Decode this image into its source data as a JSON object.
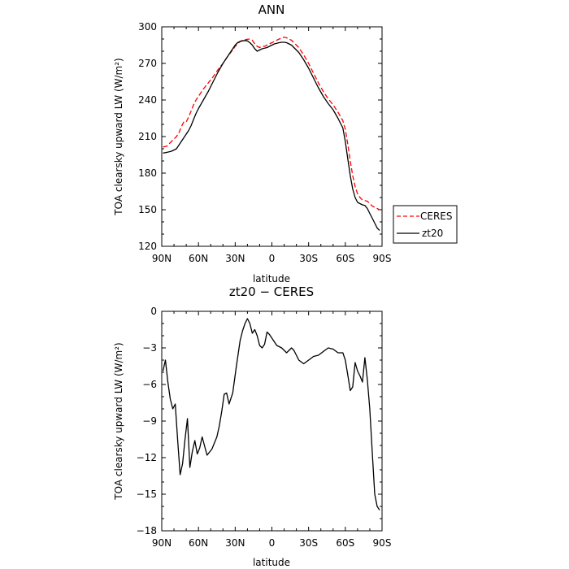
{
  "chart_data": [
    {
      "type": "line",
      "title": "ANN",
      "xlabel": "latitude",
      "ylabel": "TOA clearsky upward LW (W/m²)",
      "xlim": [
        90,
        -90
      ],
      "ylim": [
        120,
        300
      ],
      "xticks": [
        90,
        60,
        30,
        0,
        -30,
        -60,
        -90
      ],
      "xtick_labels": [
        "90N",
        "60N",
        "30N",
        "0",
        "30S",
        "60S",
        "90S"
      ],
      "yticks": [
        120,
        150,
        180,
        210,
        240,
        270,
        300
      ],
      "ytick_labels": [
        "120",
        "150",
        "180",
        "210",
        "240",
        "270",
        "300"
      ],
      "legend_position": "outside-right",
      "series": [
        {
          "name": "CERES",
          "color": "#ff0000",
          "dash": "dashed",
          "x": [
            89,
            86,
            84,
            82,
            80,
            78,
            76,
            74,
            72,
            70,
            68,
            66,
            64,
            62,
            60,
            56,
            52,
            48,
            44,
            40,
            36,
            32,
            30,
            28,
            26,
            24,
            22,
            20,
            18,
            16,
            14,
            12,
            10,
            8,
            6,
            4,
            2,
            0,
            -2,
            -4,
            -6,
            -8,
            -10,
            -12,
            -14,
            -16,
            -18,
            -20,
            -22,
            -26,
            -30,
            -34,
            -38,
            -42,
            -46,
            -50,
            -54,
            -58,
            -60,
            -62,
            -64,
            -66,
            -68,
            -70,
            -72,
            -74,
            -76,
            -78,
            -80,
            -82,
            -84,
            -86,
            -88
          ],
          "y": [
            201.5,
            202,
            204,
            206,
            208,
            210,
            213,
            218,
            222,
            222,
            226,
            231,
            236,
            240,
            243,
            249,
            254,
            259,
            265,
            270,
            276,
            281,
            284,
            286,
            288,
            289,
            289.5,
            289.8,
            290,
            289,
            286,
            284,
            283,
            284,
            284,
            285,
            286,
            287,
            288,
            289,
            290,
            291,
            291.5,
            291,
            290,
            289,
            287,
            285,
            283,
            277,
            270,
            262,
            254,
            247,
            241,
            236,
            230,
            223,
            216,
            204,
            190,
            178,
            169,
            163,
            160,
            158,
            157.5,
            157,
            155,
            153,
            152,
            151,
            150
          ]
        },
        {
          "name": "zt20",
          "color": "#000000",
          "dash": "solid",
          "x": [
            89,
            86,
            84,
            82,
            80,
            78,
            76,
            74,
            72,
            70,
            68,
            66,
            64,
            62,
            60,
            56,
            52,
            48,
            44,
            40,
            36,
            32,
            30,
            28,
            26,
            24,
            22,
            20,
            18,
            16,
            14,
            12,
            10,
            8,
            6,
            4,
            2,
            0,
            -2,
            -4,
            -6,
            -8,
            -10,
            -12,
            -14,
            -16,
            -18,
            -20,
            -22,
            -26,
            -30,
            -34,
            -38,
            -42,
            -46,
            -50,
            -54,
            -58,
            -60,
            -62,
            -64,
            -66,
            -68,
            -70,
            -72,
            -74,
            -76,
            -78,
            -80,
            -82,
            -84,
            -86,
            -88
          ],
          "y": [
            196.5,
            197,
            197.5,
            198,
            199,
            200,
            203,
            206,
            209,
            212,
            215,
            219,
            224,
            229,
            233,
            240,
            247,
            255,
            263,
            270,
            276,
            282,
            285,
            287,
            288,
            288.5,
            288.8,
            288.5,
            287,
            285,
            282,
            280,
            281,
            282,
            282.5,
            283,
            284,
            285,
            286,
            286.5,
            287,
            287.3,
            287.3,
            287,
            286,
            285,
            283,
            281,
            279,
            273,
            266,
            258,
            250,
            243,
            237,
            232,
            225,
            217,
            206,
            192,
            178,
            167,
            160,
            156,
            155,
            154,
            153.5,
            151,
            147,
            143,
            139,
            135,
            133
          ]
        }
      ]
    },
    {
      "type": "line",
      "title": "zt20 − CERES",
      "xlabel": "latitude",
      "ylabel": "TOA clearsky upward LW (W/m²)",
      "xlim": [
        90,
        -90
      ],
      "ylim": [
        -18,
        0
      ],
      "xticks": [
        90,
        60,
        30,
        0,
        -30,
        -60,
        -90
      ],
      "xtick_labels": [
        "90N",
        "60N",
        "30N",
        "0",
        "30S",
        "60S",
        "90S"
      ],
      "yticks": [
        -18,
        -15,
        -12,
        -9,
        -6,
        -3,
        0
      ],
      "ytick_labels": [
        "−18",
        "−15",
        "−12",
        "−9",
        "−6",
        "−3",
        "0"
      ],
      "series": [
        {
          "name": "",
          "color": "#000000",
          "dash": "solid",
          "x": [
            89,
            87,
            85,
            83,
            81,
            79,
            77,
            75,
            73,
            71,
            69,
            67,
            65,
            63,
            61,
            59,
            57,
            53,
            49,
            45,
            43,
            41,
            39,
            37,
            35,
            32,
            29,
            26,
            24,
            22,
            20,
            18,
            16,
            14,
            12,
            10,
            8,
            6,
            4,
            2,
            0,
            -2,
            -4,
            -6,
            -8,
            -10,
            -12,
            -14,
            -16,
            -18,
            -20,
            -22,
            -26,
            -30,
            -34,
            -38,
            -42,
            -46,
            -50,
            -54,
            -58,
            -60,
            -62,
            -64,
            -66,
            -68,
            -70,
            -72,
            -74,
            -76,
            -78,
            -80,
            -82,
            -84,
            -86,
            -88
          ],
          "y": [
            -4.9,
            -4.0,
            -5.8,
            -7.2,
            -8.0,
            -7.6,
            -10.6,
            -13.4,
            -12.5,
            -10.5,
            -8.8,
            -12.8,
            -11.5,
            -10.6,
            -11.7,
            -11.2,
            -10.3,
            -11.8,
            -11.3,
            -10.3,
            -9.4,
            -8.2,
            -6.8,
            -6.7,
            -7.6,
            -6.7,
            -4.5,
            -2.4,
            -1.6,
            -1.0,
            -0.6,
            -1.0,
            -1.8,
            -1.5,
            -2.0,
            -2.8,
            -3.0,
            -2.7,
            -1.7,
            -1.9,
            -2.2,
            -2.5,
            -2.8,
            -2.9,
            -3.0,
            -3.2,
            -3.4,
            -3.2,
            -3.0,
            -3.2,
            -3.6,
            -4.0,
            -4.3,
            -4.0,
            -3.7,
            -3.6,
            -3.3,
            -3.0,
            -3.1,
            -3.4,
            -3.4,
            -4.0,
            -5.2,
            -6.5,
            -6.2,
            -4.2,
            -4.9,
            -5.3,
            -5.8,
            -3.8,
            -5.6,
            -8.0,
            -11.6,
            -15.0,
            -16.0,
            -16.3
          ]
        }
      ]
    }
  ]
}
